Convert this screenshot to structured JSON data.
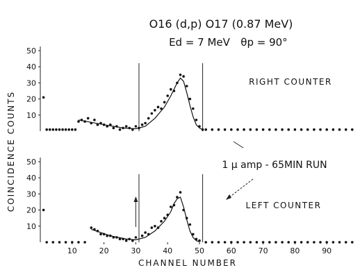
{
  "chart_data": [
    {
      "type": "scatter",
      "panel": "right",
      "label": "RIGHT COUNTER",
      "xlim": [
        0,
        100
      ],
      "ylim": [
        0,
        50
      ],
      "y_ticks": [
        10,
        20,
        30,
        40,
        50
      ],
      "points": [
        [
          1,
          21
        ],
        [
          2,
          1
        ],
        [
          3,
          1
        ],
        [
          4,
          1
        ],
        [
          5,
          1
        ],
        [
          6,
          1
        ],
        [
          7,
          1
        ],
        [
          8,
          1
        ],
        [
          9,
          1
        ],
        [
          10,
          1
        ],
        [
          11,
          1
        ],
        [
          12,
          6
        ],
        [
          13,
          7
        ],
        [
          14,
          6
        ],
        [
          15,
          8
        ],
        [
          16,
          5
        ],
        [
          17,
          7
        ],
        [
          18,
          4
        ],
        [
          19,
          5
        ],
        [
          20,
          4
        ],
        [
          21,
          3
        ],
        [
          22,
          4
        ],
        [
          23,
          2
        ],
        [
          24,
          3
        ],
        [
          25,
          1
        ],
        [
          26,
          2
        ],
        [
          27,
          3
        ],
        [
          28,
          2
        ],
        [
          29,
          1
        ],
        [
          30,
          3
        ],
        [
          31,
          2
        ],
        [
          32,
          4
        ],
        [
          33,
          5
        ],
        [
          34,
          8
        ],
        [
          35,
          11
        ],
        [
          36,
          13
        ],
        [
          37,
          15
        ],
        [
          38,
          14
        ],
        [
          39,
          18
        ],
        [
          40,
          22
        ],
        [
          41,
          26
        ],
        [
          42,
          25
        ],
        [
          43,
          30
        ],
        [
          44,
          35
        ],
        [
          45,
          34
        ],
        [
          46,
          28
        ],
        [
          47,
          20
        ],
        [
          48,
          14
        ],
        [
          49,
          7
        ],
        [
          50,
          3
        ],
        [
          51,
          1
        ],
        [
          52,
          1
        ],
        [
          54,
          1
        ],
        [
          56,
          1
        ],
        [
          58,
          1
        ],
        [
          60,
          1
        ],
        [
          62,
          1
        ],
        [
          64,
          1
        ],
        [
          66,
          1
        ],
        [
          68,
          1
        ],
        [
          70,
          1
        ],
        [
          72,
          1
        ],
        [
          74,
          1
        ],
        [
          76,
          1
        ],
        [
          78,
          1
        ],
        [
          80,
          1
        ],
        [
          82,
          1
        ],
        [
          84,
          1
        ],
        [
          86,
          1
        ],
        [
          88,
          1
        ],
        [
          90,
          1
        ],
        [
          92,
          1
        ],
        [
          94,
          1
        ],
        [
          96,
          1
        ],
        [
          98,
          1
        ]
      ],
      "curve": [
        [
          12,
          7
        ],
        [
          20,
          4
        ],
        [
          26,
          2
        ],
        [
          30,
          1.5
        ],
        [
          33,
          3
        ],
        [
          36,
          8
        ],
        [
          39,
          15
        ],
        [
          41,
          22
        ],
        [
          43,
          30
        ],
        [
          44,
          33
        ],
        [
          45,
          31
        ],
        [
          46,
          24
        ],
        [
          47,
          16
        ],
        [
          48,
          9
        ],
        [
          49,
          4
        ],
        [
          50,
          2
        ],
        [
          51,
          1
        ]
      ],
      "markers": [
        31,
        51
      ]
    },
    {
      "type": "scatter",
      "panel": "left",
      "label": "LEFT COUNTER",
      "xlim": [
        0,
        100
      ],
      "ylim": [
        0,
        50
      ],
      "y_ticks": [
        10,
        20,
        30,
        40,
        50
      ],
      "points": [
        [
          1,
          20
        ],
        [
          2,
          0
        ],
        [
          4,
          0
        ],
        [
          6,
          0
        ],
        [
          8,
          0
        ],
        [
          10,
          0
        ],
        [
          12,
          0
        ],
        [
          14,
          0
        ],
        [
          16,
          9
        ],
        [
          17,
          8
        ],
        [
          18,
          7
        ],
        [
          19,
          5
        ],
        [
          20,
          5
        ],
        [
          21,
          4
        ],
        [
          22,
          4
        ],
        [
          23,
          3
        ],
        [
          24,
          3
        ],
        [
          25,
          2
        ],
        [
          26,
          2
        ],
        [
          27,
          1
        ],
        [
          28,
          2
        ],
        [
          29,
          1
        ],
        [
          30,
          3
        ],
        [
          32,
          4
        ],
        [
          33,
          6
        ],
        [
          34,
          5
        ],
        [
          35,
          9
        ],
        [
          36,
          10
        ],
        [
          37,
          9
        ],
        [
          38,
          13
        ],
        [
          39,
          15
        ],
        [
          40,
          17
        ],
        [
          41,
          22
        ],
        [
          42,
          23
        ],
        [
          43,
          28
        ],
        [
          44,
          31
        ],
        [
          45,
          20
        ],
        [
          46,
          15
        ],
        [
          47,
          11
        ],
        [
          48,
          5
        ],
        [
          49,
          2
        ],
        [
          50,
          1
        ],
        [
          52,
          0
        ],
        [
          54,
          0
        ],
        [
          56,
          0
        ],
        [
          58,
          0
        ],
        [
          60,
          0
        ],
        [
          62,
          0
        ],
        [
          64,
          0
        ],
        [
          66,
          0
        ],
        [
          68,
          0
        ],
        [
          70,
          0
        ],
        [
          72,
          0
        ],
        [
          74,
          0
        ],
        [
          76,
          0
        ],
        [
          78,
          0
        ],
        [
          80,
          0
        ],
        [
          82,
          0
        ],
        [
          84,
          0
        ],
        [
          86,
          0
        ],
        [
          88,
          0
        ],
        [
          90,
          0
        ],
        [
          92,
          0
        ],
        [
          94,
          0
        ],
        [
          96,
          0
        ],
        [
          98,
          0
        ]
      ],
      "curve": [
        [
          16,
          8
        ],
        [
          22,
          4
        ],
        [
          27,
          2
        ],
        [
          30,
          1.5
        ],
        [
          33,
          3
        ],
        [
          36,
          7
        ],
        [
          39,
          13
        ],
        [
          41,
          19
        ],
        [
          42,
          24
        ],
        [
          43,
          27
        ],
        [
          44,
          28
        ],
        [
          45,
          22
        ],
        [
          46,
          14
        ],
        [
          47,
          7
        ],
        [
          48,
          3
        ],
        [
          49,
          1
        ],
        [
          50,
          0.3
        ]
      ],
      "markers": [
        31,
        51
      ],
      "arrow_marker": 31
    }
  ],
  "texts": {
    "title": "O16 (d,p) O17 (0.87 MeV)",
    "energy": "Ed = 7 MeV",
    "angle": "θp = 90°",
    "y_axis_label": "COINCIDENCE  COUNTS",
    "x_axis_label": "CHANNEL  NUMBER",
    "run_note": "1 μ amp - 65MIN RUN",
    "x_tick_labels": [
      "10",
      "20",
      "30",
      "40",
      "50",
      "60",
      "70",
      "80",
      "90"
    ]
  }
}
